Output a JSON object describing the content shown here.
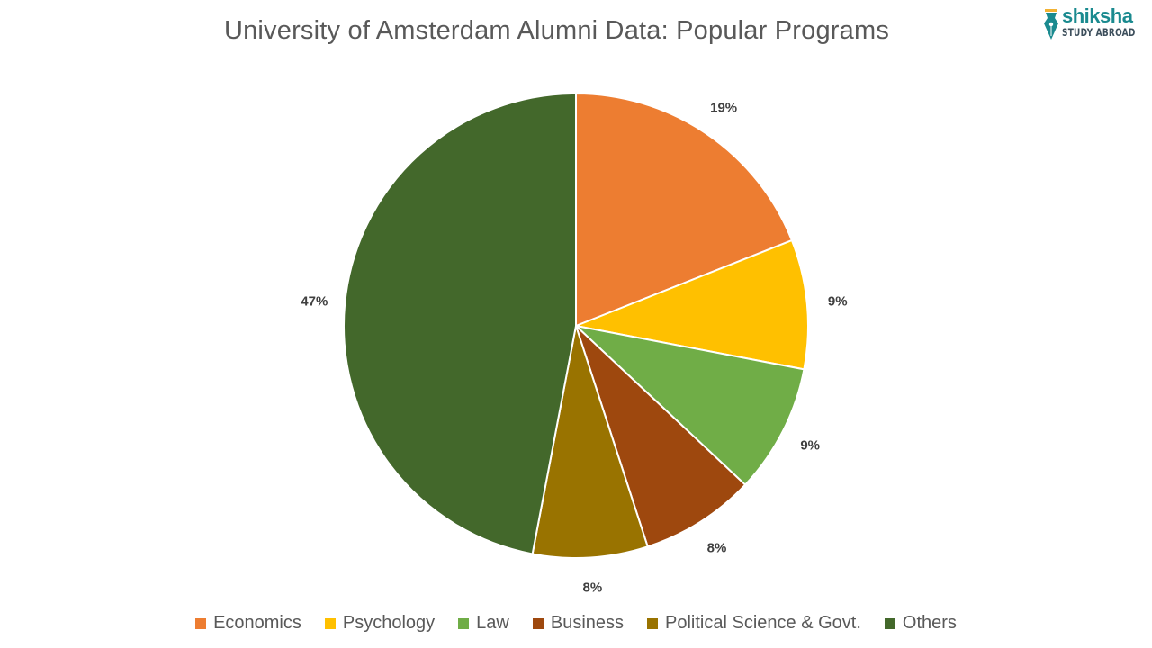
{
  "title": "University of Amsterdam Alumni Data: Popular Programs",
  "logo": {
    "brand": "shiksha",
    "sub": "STUDY ABROAD",
    "icon": "pen-nib-icon",
    "color": "#1a8a8f"
  },
  "chart_data": {
    "type": "pie",
    "title": "University of Amsterdam Alumni Data: Popular Programs",
    "categories": [
      "Economics",
      "Psychology",
      "Law",
      "Business",
      "Political Science & Govt.",
      "Others"
    ],
    "values": [
      19,
      9,
      9,
      8,
      8,
      47
    ],
    "labels": [
      "19%",
      "9%",
      "9%",
      "8%",
      "8%",
      "47%"
    ],
    "colors": [
      "#ED7D31",
      "#FFC000",
      "#70AD47",
      "#9E480E",
      "#997300",
      "#43682B"
    ],
    "start_angle": "12 o'clock",
    "direction": "clockwise",
    "legend_position": "bottom",
    "data_labels": "outside end"
  },
  "legend": [
    {
      "label": "Economics",
      "color": "#ED7D31"
    },
    {
      "label": "Psychology",
      "color": "#FFC000"
    },
    {
      "label": "Law",
      "color": "#70AD47"
    },
    {
      "label": "Business",
      "color": "#9E480E"
    },
    {
      "label": "Political Science & Govt.",
      "color": "#997300"
    },
    {
      "label": "Others",
      "color": "#43682B"
    }
  ]
}
